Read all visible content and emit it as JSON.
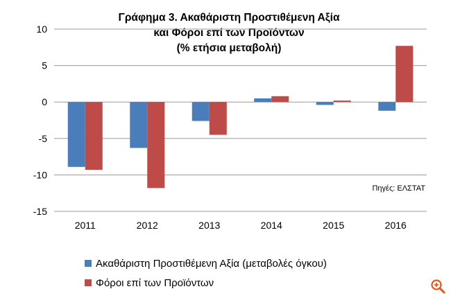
{
  "chart_data": {
    "type": "bar",
    "title_lines": [
      "Γράφημα 3. Ακαθάριστη Προστιθέμενη Αξία",
      "και Φόροι επί των Προϊόντων",
      "(% ετήσια μεταβολή)"
    ],
    "categories": [
      "2011",
      "2012",
      "2013",
      "2014",
      "2015",
      "2016"
    ],
    "series": [
      {
        "name": "Ακαθάριστη Προστιθέμενη Αξία  (μεταβολές όγκου)",
        "color": "#4a7ebb",
        "values": [
          -8.9,
          -6.3,
          -2.6,
          0.5,
          -0.4,
          -1.2
        ]
      },
      {
        "name": "Φόροι επί των Προϊόντων",
        "color": "#be4b48",
        "values": [
          -9.3,
          -11.8,
          -4.5,
          0.8,
          0.2,
          7.7
        ]
      }
    ],
    "ylim": [
      -15,
      10
    ],
    "yticks": [
      "10",
      "5",
      "0",
      "-5",
      "-10",
      "-15"
    ],
    "ytick_values": [
      10,
      5,
      0,
      -5,
      -10,
      -15
    ],
    "grid": true,
    "legend_position": "bottom",
    "source_note": "Πηγές: ΕΛΣΤΑΤ"
  },
  "zoom_icon": "zoom-in-icon"
}
